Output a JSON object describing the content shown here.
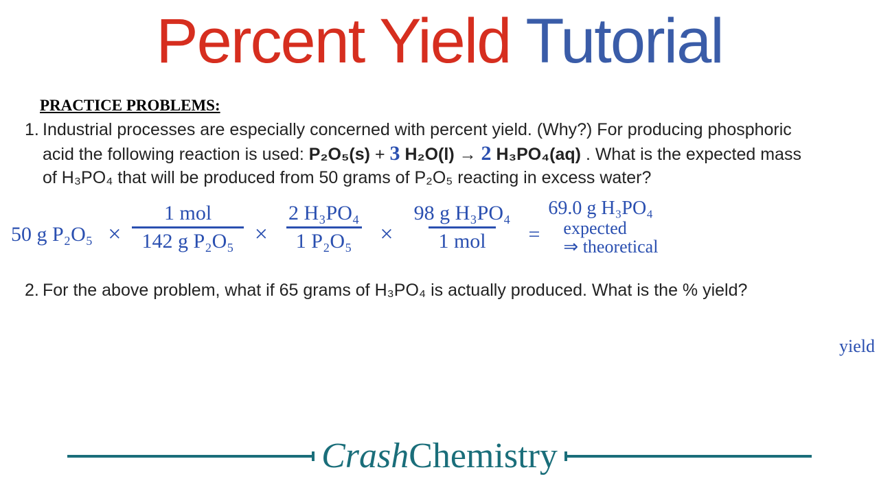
{
  "title": {
    "part1": "Percent Yield",
    "part2": "Tutorial"
  },
  "colors": {
    "red": "#d62e1f",
    "blue_title": "#3a5ca8",
    "handwriting": "#2a4fb0",
    "teal": "#1a6e7a",
    "text": "#222222",
    "background": "#ffffff"
  },
  "section_header": "PRACTICE PROBLEMS:",
  "problem1": {
    "number": "1.",
    "line1": "Industrial processes are especially concerned with percent yield. (Why?) For producing phosphoric",
    "line2a": "acid the following reaction is used:   ",
    "eq_p2o5": "P₂O₅(s)",
    "eq_plus": " + ",
    "coef_h2o": "3",
    "eq_h2o": " H₂O(l) ",
    "arrow": "→ ",
    "coef_h3po4": "2",
    "eq_h3po4": " H₃PO₄(aq)",
    "line2b": ". What is the expected mass",
    "line3": "of H₃PO₄ that will be produced from 50 grams of P₂O₅ reacting in excess water?"
  },
  "calculation": {
    "start": "50 g P₂O₅",
    "f1_top": "1 mol",
    "f1_bot": "142 g P₂O₅",
    "f2_top": "2 H₃PO₄",
    "f2_bot": "1 P₂O₅",
    "f3_top": "98 g H₃PO₄",
    "f3_bot": "1 mol",
    "times": "×",
    "equals": "=",
    "result": "69.0 g H₃PO₄",
    "note1": "expected",
    "note2": "⇒ theoretical",
    "note3": "yield"
  },
  "problem2": {
    "number": "2.",
    "text": "For the above problem, what if 65 grams of H₃PO₄ is actually produced. What is the % yield?"
  },
  "footer": {
    "italic": "Crash",
    "plain": "Chemistry"
  }
}
